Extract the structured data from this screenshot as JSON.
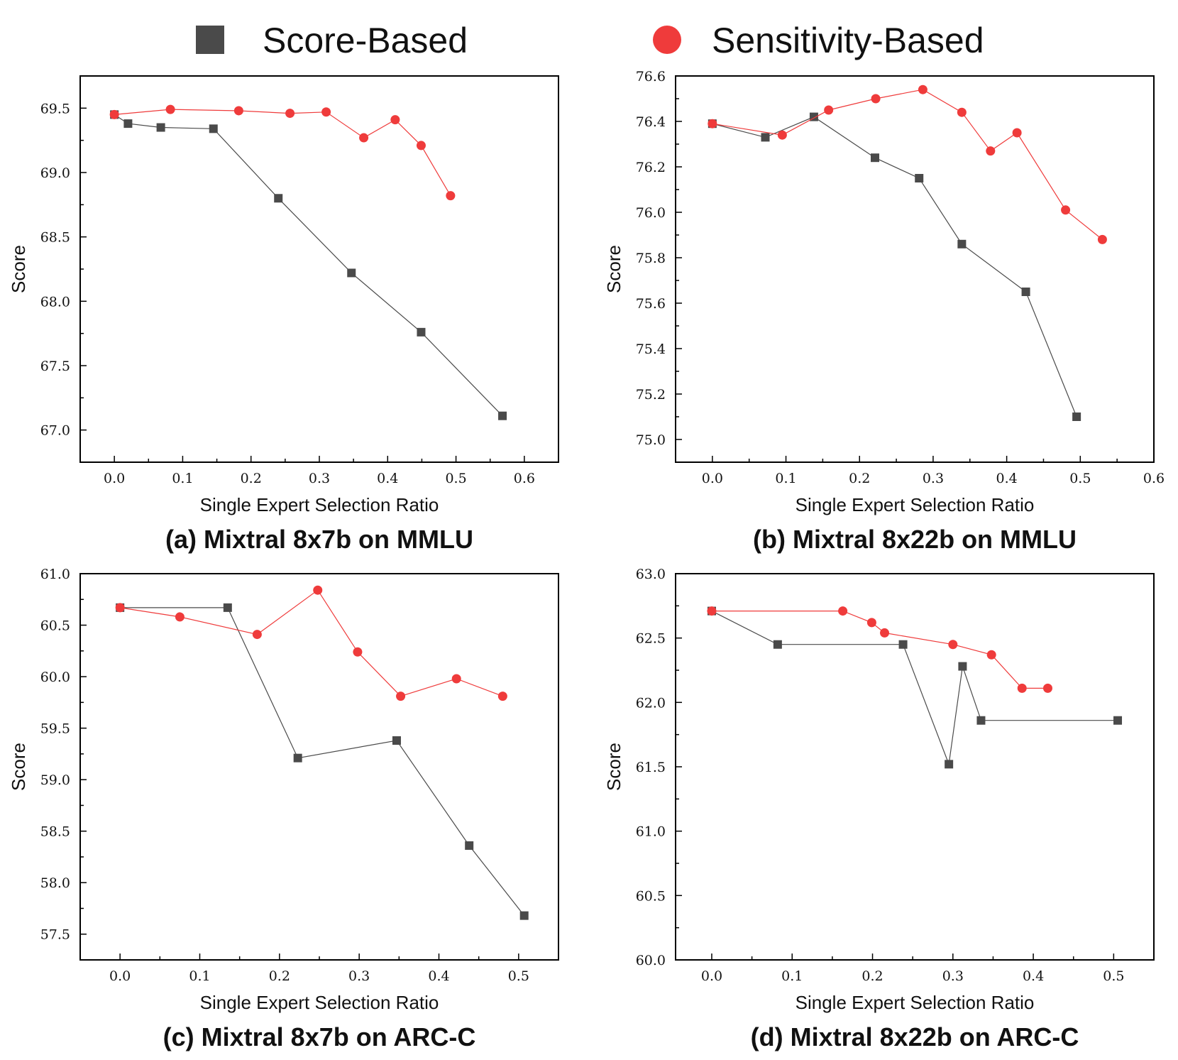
{
  "legend": {
    "items": [
      {
        "name": "Score-Based",
        "color": "#4a4a4a",
        "marker": "square-icon"
      },
      {
        "name": "Sensitivity-Based",
        "color": "#ef3b3b",
        "marker": "circle-icon"
      }
    ]
  },
  "chart_data": [
    {
      "type": "line",
      "caption": "(a) Mixtral 8x7b on MMLU",
      "xlabel": "Single Expert Selection Ratio",
      "ylabel": "Score",
      "xlim": [
        -0.05,
        0.65
      ],
      "ylim": [
        66.75,
        69.75
      ],
      "xticks": [
        0.0,
        0.1,
        0.2,
        0.3,
        0.4,
        0.5,
        0.6
      ],
      "xtick_labels": [
        "0.0",
        "0.1",
        "0.2",
        "0.3",
        "0.4",
        "0.5",
        "0.6"
      ],
      "yticks": [
        67.0,
        67.5,
        68.0,
        68.5,
        69.0,
        69.5
      ],
      "ytick_labels": [
        "67.0",
        "67.5",
        "68.0",
        "68.5",
        "69.0",
        "69.5"
      ],
      "series": [
        {
          "name": "Score-Based",
          "x": [
            0.0,
            0.02,
            0.068,
            0.145,
            0.24,
            0.347,
            0.449,
            0.568
          ],
          "y": [
            69.45,
            69.38,
            69.35,
            69.34,
            68.8,
            68.22,
            67.76,
            67.11
          ]
        },
        {
          "name": "Sensitivity-Based",
          "x": [
            0.0,
            0.082,
            0.182,
            0.257,
            0.31,
            0.365,
            0.411,
            0.449,
            0.492
          ],
          "y": [
            69.45,
            69.49,
            69.48,
            69.46,
            69.47,
            69.27,
            69.41,
            69.21,
            68.82
          ]
        }
      ]
    },
    {
      "type": "line",
      "caption": "(b) Mixtral 8x22b on MMLU",
      "xlabel": "Single Expert Selection Ratio",
      "ylabel": "Score",
      "xlim": [
        -0.05,
        0.6
      ],
      "ylim": [
        74.9,
        76.6
      ],
      "xticks": [
        0.0,
        0.1,
        0.2,
        0.3,
        0.4,
        0.5,
        0.6
      ],
      "xtick_labels": [
        "0.0",
        "0.1",
        "0.2",
        "0.3",
        "0.4",
        "0.5",
        "0.6"
      ],
      "yticks": [
        75.0,
        75.2,
        75.4,
        75.6,
        75.8,
        76.0,
        76.2,
        76.4,
        76.6
      ],
      "ytick_labels": [
        "75.0",
        "75.2",
        "75.4",
        "75.6",
        "75.8",
        "76.0",
        "76.2",
        "76.4",
        "76.6"
      ],
      "series": [
        {
          "name": "Score-Based",
          "x": [
            0.0,
            0.072,
            0.138,
            0.221,
            0.281,
            0.339,
            0.426,
            0.495
          ],
          "y": [
            76.39,
            76.33,
            76.42,
            76.24,
            76.15,
            75.86,
            75.65,
            75.1
          ]
        },
        {
          "name": "Sensitivity-Based",
          "x": [
            0.0,
            0.095,
            0.158,
            0.222,
            0.286,
            0.339,
            0.378,
            0.414,
            0.48,
            0.53
          ],
          "y": [
            76.39,
            76.34,
            76.45,
            76.5,
            76.54,
            76.44,
            76.27,
            76.35,
            76.01,
            75.88
          ]
        }
      ]
    },
    {
      "type": "line",
      "caption": "(c) Mixtral 8x7b on ARC-C",
      "xlabel": "Single Expert Selection Ratio",
      "ylabel": "Score",
      "xlim": [
        -0.05,
        0.55
      ],
      "ylim": [
        57.25,
        61.0
      ],
      "xticks": [
        0.0,
        0.1,
        0.2,
        0.3,
        0.4,
        0.5
      ],
      "xtick_labels": [
        "0.0",
        "0.1",
        "0.2",
        "0.3",
        "0.4",
        "0.5"
      ],
      "yticks": [
        57.5,
        58.0,
        58.5,
        59.0,
        59.5,
        60.0,
        60.5,
        61.0
      ],
      "ytick_labels": [
        "57.5",
        "58.0",
        "58.5",
        "59.0",
        "59.5",
        "60.0",
        "60.5",
        "61.0"
      ],
      "series": [
        {
          "name": "Score-Based",
          "x": [
            0.0,
            0.135,
            0.223,
            0.347,
            0.438,
            0.507
          ],
          "y": [
            60.67,
            60.67,
            59.21,
            59.38,
            58.36,
            57.68
          ]
        },
        {
          "name": "Sensitivity-Based",
          "x": [
            0.0,
            0.075,
            0.172,
            0.248,
            0.298,
            0.352,
            0.422,
            0.48
          ],
          "y": [
            60.67,
            60.58,
            60.41,
            60.84,
            60.24,
            59.81,
            59.98,
            59.81
          ]
        }
      ]
    },
    {
      "type": "line",
      "caption": "(d) Mixtral 8x22b on ARC-C",
      "xlabel": "Single Expert Selection Ratio",
      "ylabel": "Score",
      "xlim": [
        -0.045,
        0.55
      ],
      "ylim": [
        60.0,
        63.0
      ],
      "xticks": [
        0.0,
        0.1,
        0.2,
        0.3,
        0.4,
        0.5
      ],
      "xtick_labels": [
        "0.0",
        "0.1",
        "0.2",
        "0.3",
        "0.4",
        "0.5"
      ],
      "yticks": [
        60.0,
        60.5,
        61.0,
        61.5,
        62.0,
        62.5,
        63.0
      ],
      "ytick_labels": [
        "60.0",
        "60.5",
        "61.0",
        "61.5",
        "62.0",
        "62.5",
        "63.0"
      ],
      "series": [
        {
          "name": "Score-Based",
          "x": [
            0.0,
            0.082,
            0.238,
            0.295,
            0.312,
            0.335,
            0.505
          ],
          "y": [
            62.71,
            62.45,
            62.45,
            61.52,
            62.28,
            61.86,
            61.86
          ]
        },
        {
          "name": "Sensitivity-Based",
          "x": [
            0.0,
            0.163,
            0.199,
            0.215,
            0.3,
            0.348,
            0.386,
            0.418
          ],
          "y": [
            62.71,
            62.71,
            62.62,
            62.54,
            62.45,
            62.37,
            62.11,
            62.11
          ]
        }
      ]
    }
  ]
}
